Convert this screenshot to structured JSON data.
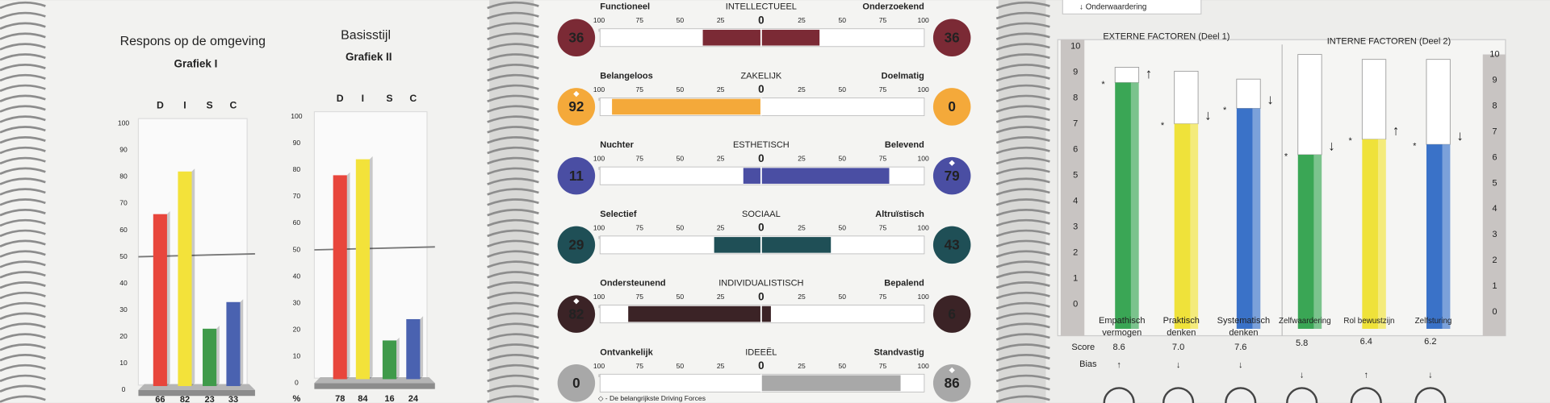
{
  "left_page": {
    "colors": [
      "#e8463c",
      "#f3e23a",
      "#3f9a4a",
      "#4a62b0"
    ],
    "ylim": [
      0,
      100
    ],
    "yticks": [
      0,
      10,
      20,
      30,
      40,
      50,
      60,
      70,
      80,
      90,
      100
    ],
    "charts": [
      {
        "title": "Respons op de omgeving",
        "subtitle": "Grafiek I",
        "categories": [
          "D",
          "I",
          "S",
          "C"
        ],
        "values": [
          66,
          82,
          23,
          33
        ]
      },
      {
        "title": "Basisstijl",
        "subtitle": "Grafiek II",
        "categories": [
          "D",
          "I",
          "S",
          "C"
        ],
        "values": [
          78,
          84,
          16,
          24
        ],
        "value_row_label": "%"
      }
    ]
  },
  "middle_page": {
    "ticks": [
      100,
      75,
      50,
      25,
      0,
      25,
      50,
      75,
      100
    ],
    "rows": [
      {
        "title": "INTELLECTUEEL",
        "left_label": "Functioneel",
        "right_label": "Onderzoekend",
        "left": 36,
        "right": 36,
        "color": "#7b2a35",
        "left_key": false,
        "right_key": false
      },
      {
        "title": "ZAKELIJK",
        "left_label": "Belangeloos",
        "right_label": "Doelmatig",
        "left": 92,
        "right": 0,
        "color": "#f4a93a",
        "left_key": true,
        "right_key": false
      },
      {
        "title": "ESTHETISCH",
        "left_label": "Nuchter",
        "right_label": "Belevend",
        "left": 11,
        "right": 79,
        "color": "#4a4ea3",
        "left_key": false,
        "right_key": true
      },
      {
        "title": "SOCIAAL",
        "left_label": "Selectief",
        "right_label": "Altruïstisch",
        "left": 29,
        "right": 43,
        "color": "#1f4f56",
        "left_key": false,
        "right_key": false
      },
      {
        "title": "INDIVIDUALISTISCH",
        "left_label": "Ondersteunend",
        "right_label": "Bepalend",
        "left": 82,
        "right": 6,
        "color": "#3b2326",
        "left_key": true,
        "right_key": false
      },
      {
        "title": "IDEEËL",
        "left_label": "Ontvankelijk",
        "right_label": "Standvastig",
        "left": 0,
        "right": 86,
        "color": "#a8a8a8",
        "left_key": false,
        "right_key": true
      }
    ],
    "footnote": "◇ - De belangrijkste Driving Forces"
  },
  "right_page": {
    "legend": "↓ Onderwaardering",
    "group_titles": [
      "EXTERNE FACTOREN (Deel 1)",
      "INTERNE FACTOREN (Deel 2)"
    ],
    "ylim": [
      0,
      10
    ],
    "yticks": [
      0,
      1,
      2,
      3,
      4,
      5,
      6,
      7,
      8,
      9,
      10
    ],
    "score_label": "Score",
    "bias_label": "Bias",
    "labels": [
      [
        "Empathisch",
        "vermogen"
      ],
      [
        "Praktisch",
        "denken"
      ],
      [
        "Systematisch",
        "denken"
      ],
      [
        "Zelfwaardering"
      ],
      [
        "Rol bewustzijn"
      ],
      [
        "Zelfsturing"
      ]
    ],
    "scores": [
      8.6,
      7.0,
      7.6,
      5.8,
      6.4,
      6.2
    ],
    "score_labels": [
      "8.6",
      "7.0",
      "7.6",
      "5.8",
      "6.4",
      "6.2"
    ],
    "bias": [
      "↑",
      "↓",
      "↓",
      "↓",
      "↑",
      "↓"
    ],
    "colors": [
      "#3aa655",
      "#efe23a",
      "#3a72c8",
      "#3aa655",
      "#efe23a",
      "#3a72c8"
    ]
  }
}
